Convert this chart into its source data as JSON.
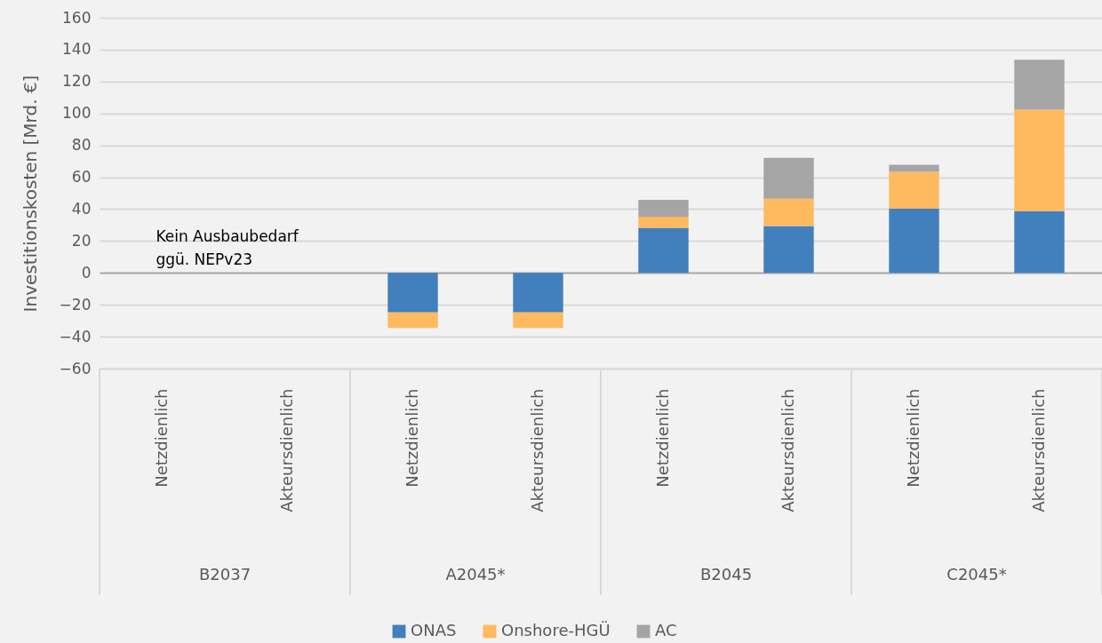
{
  "chart_data": {
    "type": "bar",
    "stacked": true,
    "ylabel": "Investitionskosten [Mrd. €]",
    "categories": [
      "Netzdienlich",
      "Akteursdienlich",
      "Netzdienlich",
      "Akteursdienlich",
      "Netzdienlich",
      "Akteursdienlich",
      "Netzdienlich",
      "Akteursdienlich"
    ],
    "series": [
      {
        "name": "ONAS",
        "color": "#427fbd",
        "values": [
          null,
          null,
          -24.8,
          -24.8,
          28.3,
          29.4,
          40.2,
          38.7
        ]
      },
      {
        "name": "Onshore-HGÜ",
        "color": "#ffb95f",
        "values": [
          null,
          null,
          -9.7,
          -9.7,
          6.9,
          17.1,
          23.1,
          63.7
        ]
      },
      {
        "name": "AC",
        "color": "#a5a5a5",
        "values": [
          null,
          null,
          null,
          null,
          10.6,
          25.7,
          4.5,
          31.3
        ]
      }
    ],
    "ylim": [
      -60,
      160
    ],
    "yticks": [
      -60,
      -40,
      -20,
      0,
      20,
      40,
      60,
      80,
      100,
      120,
      140,
      160
    ],
    "grid": "y",
    "legend": "bottom",
    "annotations": [
      "Kein Ausbaubedarf\nggü. NEPv23",
      "B2037",
      "A2045*",
      "B2045",
      "C2045*"
    ]
  }
}
